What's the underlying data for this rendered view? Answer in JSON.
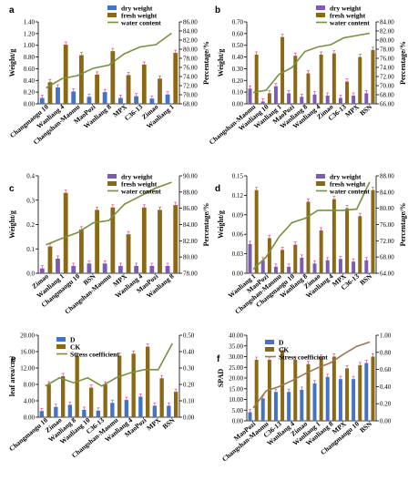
{
  "colors": {
    "bar1": "#4472C4",
    "bar2": "#8B6914",
    "bar3": "#7B5CB5",
    "line": "#76923C",
    "stress": "#A0764F",
    "err": "#E040A0"
  },
  "chart_data": [
    {
      "id": "a",
      "type": "bar-line",
      "letter": "a",
      "categories": [
        "Changmaogu 10",
        "Wanliang 4",
        "Changshan-Maomu",
        "MaoPozi",
        "Wanliang 8",
        "MPX",
        "C36-13",
        "Zimao",
        "Wanliang 1"
      ],
      "series": [
        {
          "name": "dry weight",
          "kind": "bar",
          "axis": "left",
          "values": [
            0.1,
            0.28,
            0.21,
            0.12,
            0.2,
            0.1,
            0.13,
            0.09,
            0.16
          ],
          "color": "#4472C4"
        },
        {
          "name": "fresh weight",
          "kind": "bar",
          "axis": "left",
          "values": [
            0.37,
            1.01,
            0.83,
            0.5,
            0.9,
            0.49,
            0.67,
            0.43,
            0.87
          ],
          "color": "#8B6914"
        },
        {
          "name": "water content",
          "kind": "line",
          "axis": "right",
          "values": [
            71.5,
            73.5,
            74.2,
            75.8,
            76.5,
            79.0,
            80.5,
            81.0,
            83.5
          ],
          "color": "#76923C"
        }
      ],
      "yleft": {
        "label": "Weight/g",
        "min": 0,
        "max": 1.4,
        "step": 0.2,
        "decimals": 2
      },
      "yright": {
        "label": "Percentage/%",
        "min": 68,
        "max": 86,
        "step": 2,
        "decimals": 2
      },
      "legend": "top-right"
    },
    {
      "id": "b",
      "type": "bar-line",
      "letter": "b",
      "categories": [
        "Changshan-Maomu",
        "Wanliang 10",
        "Wanliang 1",
        "MaoPozi",
        "Wanliang 8",
        "Wanliang 4",
        "Zimao",
        "C36-13",
        "MPX",
        "BSN"
      ],
      "series": [
        {
          "name": "dry weight",
          "kind": "bar",
          "axis": "left",
          "values": [
            0.13,
            0.02,
            0.15,
            0.09,
            0.06,
            0.08,
            0.07,
            0.05,
            0.07,
            0.09
          ],
          "color": "#7B5CB5"
        },
        {
          "name": "fresh weight",
          "kind": "bar",
          "axis": "left",
          "values": [
            0.42,
            0.09,
            0.57,
            0.41,
            0.26,
            0.42,
            0.43,
            0.19,
            0.4,
            0.46
          ],
          "color": "#8B6914"
        },
        {
          "name": "water content",
          "kind": "line",
          "axis": "right",
          "values": [
            68.5,
            69.0,
            72.5,
            74.0,
            77.5,
            78.5,
            79.0,
            80.5,
            81.0,
            81.5
          ],
          "color": "#76923C"
        }
      ],
      "yleft": {
        "label": "Weight/g",
        "min": 0,
        "max": 0.7,
        "step": 0.1,
        "decimals": 2
      },
      "yright": {
        "label": "Percentage/%",
        "min": 66,
        "max": 84,
        "step": 2,
        "decimals": 2
      },
      "legend": "top-right"
    },
    {
      "id": "c",
      "type": "bar-line",
      "letter": "c",
      "categories": [
        "Zimao",
        "Wanliang 1",
        "Changmaogu 10",
        "BSN",
        "Changshan-Maomu",
        "MPX",
        "Wanliang 4",
        "MaoPozi",
        "Wanliang 8"
      ],
      "series": [
        {
          "name": "dry weight",
          "kind": "bar",
          "axis": "left",
          "values": [
            0.02,
            0.06,
            0.03,
            0.04,
            0.04,
            0.03,
            0.03,
            0.03,
            0.03
          ],
          "color": "#7B5CB5"
        },
        {
          "name": "fresh weight",
          "kind": "bar",
          "axis": "left",
          "values": [
            0.11,
            0.33,
            0.18,
            0.26,
            0.27,
            0.16,
            0.27,
            0.26,
            0.28
          ],
          "color": "#8B6914"
        },
        {
          "name": "water content",
          "kind": "line",
          "axis": "right",
          "values": [
            81.5,
            82.3,
            83.0,
            84.2,
            84.5,
            86.5,
            87.5,
            88.5,
            89.2
          ],
          "color": "#76923C"
        }
      ],
      "yleft": {
        "label": "Weight/g",
        "min": 0,
        "max": 0.4,
        "step": 0.1,
        "decimals": 1
      },
      "yright": {
        "label": "Percentage/%",
        "min": 78,
        "max": 90,
        "step": 2,
        "decimals": 2
      },
      "legend": "top-right"
    },
    {
      "id": "d",
      "type": "bar-line",
      "letter": "d",
      "categories": [
        "Wanliang 1",
        "MaoPozi",
        "Changshan-Maomu",
        "Changmaogu 10",
        "Wanliang 8",
        "Zimao",
        "Wanliang 4",
        "MPX",
        "C36-13",
        "BSN"
      ],
      "series": [
        {
          "name": "dry weight",
          "kind": "bar",
          "axis": "left",
          "values": [
            0.045,
            0.02,
            0.01,
            0.01,
            0.024,
            0.015,
            0.02,
            0.022,
            0.018,
            0.02
          ],
          "color": "#7B5CB5"
        },
        {
          "name": "fresh weight",
          "kind": "bar",
          "axis": "left",
          "values": [
            0.128,
            0.054,
            0.036,
            0.044,
            0.11,
            0.066,
            0.114,
            0.1,
            0.088,
            0.128
          ],
          "color": "#8B6914"
        },
        {
          "name": "water content",
          "kind": "line",
          "axis": "right",
          "values": [
            65.0,
            68.0,
            73.0,
            76.5,
            77.5,
            79.5,
            79.5,
            79.5,
            79.8,
            86.5
          ],
          "color": "#76923C"
        }
      ],
      "yleft": {
        "label": "Weight/g",
        "min": 0,
        "max": 0.15,
        "step": 0.03,
        "decimals": 2
      },
      "yright": {
        "label": "Percentage/%",
        "min": 64,
        "max": 88,
        "step": 4,
        "decimals": 2
      },
      "legend": "top-right"
    },
    {
      "id": "e",
      "type": "bar-line",
      "letter": "e",
      "categories": [
        "Changmaogu 10",
        "Zimao",
        "Wanliang 8",
        "Wanliang 10",
        "C36-13",
        "Changshan-Maomu",
        "Wanliang 4",
        "MaoPozi",
        "MPX",
        "BSN"
      ],
      "series": [
        {
          "name": "D",
          "kind": "bar",
          "axis": "left",
          "values": [
            1.5,
            2.5,
            3.0,
            1.8,
            1.6,
            3.5,
            4.2,
            5.0,
            2.8,
            2.8
          ],
          "color": "#4472C4"
        },
        {
          "name": "CK",
          "kind": "bar",
          "axis": "left",
          "values": [
            8.0,
            10.0,
            15.0,
            7.2,
            8.0,
            15.0,
            15.5,
            17.2,
            9.5,
            6.2
          ],
          "color": "#8B6914"
        },
        {
          "name": "Stress coefficient",
          "kind": "line",
          "axis": "right",
          "values": [
            0.19,
            0.24,
            0.21,
            0.24,
            0.19,
            0.24,
            0.27,
            0.29,
            0.29,
            0.45
          ],
          "color": "#76923C"
        }
      ],
      "yleft": {
        "label": "leaf area/cm²",
        "min": 0,
        "max": 20,
        "step": 4,
        "decimals": 2
      },
      "yright": {
        "label": "",
        "min": 0,
        "max": 0.5,
        "step": 0.1,
        "decimals": 2
      },
      "legend": "top-left"
    },
    {
      "id": "f",
      "type": "bar-line",
      "letter": "f",
      "categories": [
        "MaoPozi",
        "Changshan-Maomu",
        "C36-13",
        "Wanliang 4",
        "Zimao",
        "Wanliang 1",
        "Wanliang 8",
        "MPX",
        "Changmaogu 10",
        "BSN"
      ],
      "series": [
        {
          "name": "D",
          "kind": "bar",
          "axis": "left",
          "values": [
            4.0,
            10.5,
            13.5,
            13.5,
            14.5,
            17.5,
            20.5,
            19.5,
            19.5,
            27.0
          ],
          "color": "#4472C4"
        },
        {
          "name": "CK",
          "kind": "bar",
          "axis": "left",
          "values": [
            28.5,
            28.5,
            33.0,
            28.5,
            26.5,
            29.5,
            30.0,
            24.5,
            26.0,
            30.0
          ],
          "color": "#8B6914"
        },
        {
          "name": "Stress coefficient",
          "kind": "line",
          "axis": "right",
          "values": [
            0.15,
            0.35,
            0.4,
            0.47,
            0.55,
            0.62,
            0.68,
            0.78,
            0.87,
            0.92
          ],
          "color": "#A0764F"
        }
      ],
      "yleft": {
        "label": "SPAD",
        "min": 0,
        "max": 40,
        "step": 5,
        "decimals": 2
      },
      "yright": {
        "label": "",
        "min": 0,
        "max": 1.0,
        "step": 0.2,
        "decimals": 2
      },
      "legend": "top-left"
    }
  ]
}
